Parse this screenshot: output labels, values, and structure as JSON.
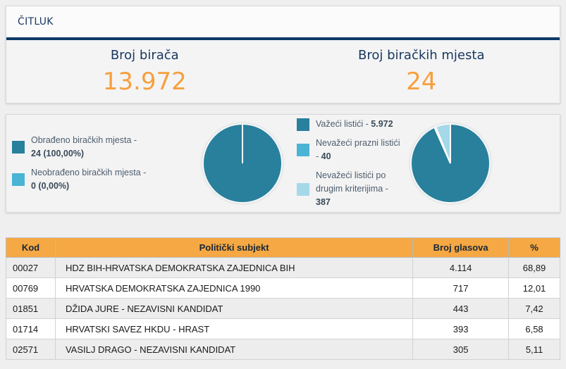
{
  "header": {
    "title": "ČITLUK"
  },
  "colors": {
    "accent_orange": "#f6a03d",
    "navy": "#0e3a66",
    "teal_dark": "#28809c",
    "blue_medium": "#4ab4d4",
    "blue_light": "#a5d8e9",
    "table_header_orange": "#f5a843"
  },
  "stats": [
    {
      "label": "Broj birača",
      "value": "13.972"
    },
    {
      "label": "Broj biračkih mjesta",
      "value": "24"
    }
  ],
  "chart_data": [
    {
      "type": "pie",
      "title": "Obrađenost biračkih mjesta",
      "categories": [
        "Obrađeno biračkih mjesta",
        "Neobrađeno biračkih mjesta"
      ],
      "values": [
        24,
        0
      ],
      "colors": [
        "#28809c",
        "#4ab4d4"
      ],
      "legend_position": "left",
      "legend": [
        {
          "label": "Obrađeno biračkih mjesta -",
          "value": "24 (100,00%)"
        },
        {
          "label": "Neobrađeno biračkih mjesta -",
          "value": "0 (0,00%)"
        }
      ]
    },
    {
      "type": "pie",
      "title": "Listići",
      "categories": [
        "Važeći listići",
        "Nevažeći prazni listići",
        "Nevažeći listići po drugim kriterijima"
      ],
      "values": [
        5972,
        40,
        387
      ],
      "colors": [
        "#28809c",
        "#4ab4d4",
        "#a5d8e9"
      ],
      "legend_position": "left",
      "legend": [
        {
          "label": "Važeći listići -",
          "value": "5.972"
        },
        {
          "label": "Nevažeći prazni listići -",
          "value": "40"
        },
        {
          "label": "Nevažeći listići po drugim kriterijima -",
          "value": "387"
        }
      ]
    }
  ],
  "table": {
    "columns": [
      "Kod",
      "Politički subjekt",
      "Broj glasova",
      "%"
    ],
    "rows": [
      {
        "kod": "00027",
        "subjekt": "HDZ BIH-HRVATSKA DEMOKRATSKA ZAJEDNICA BIH",
        "glasova": "4.114",
        "pct": "68,89"
      },
      {
        "kod": "00769",
        "subjekt": "HRVATSKA DEMOKRATSKA ZAJEDNICA 1990",
        "glasova": "717",
        "pct": "12,01"
      },
      {
        "kod": "01851",
        "subjekt": "DŽIDA JURE - NEZAVISNI KANDIDAT",
        "glasova": "443",
        "pct": "7,42"
      },
      {
        "kod": "01714",
        "subjekt": "HRVATSKI SAVEZ HKDU - HRAST",
        "glasova": "393",
        "pct": "6,58"
      },
      {
        "kod": "02571",
        "subjekt": "VASILJ DRAGO - NEZAVISNI KANDIDAT",
        "glasova": "305",
        "pct": "5,11"
      }
    ]
  }
}
